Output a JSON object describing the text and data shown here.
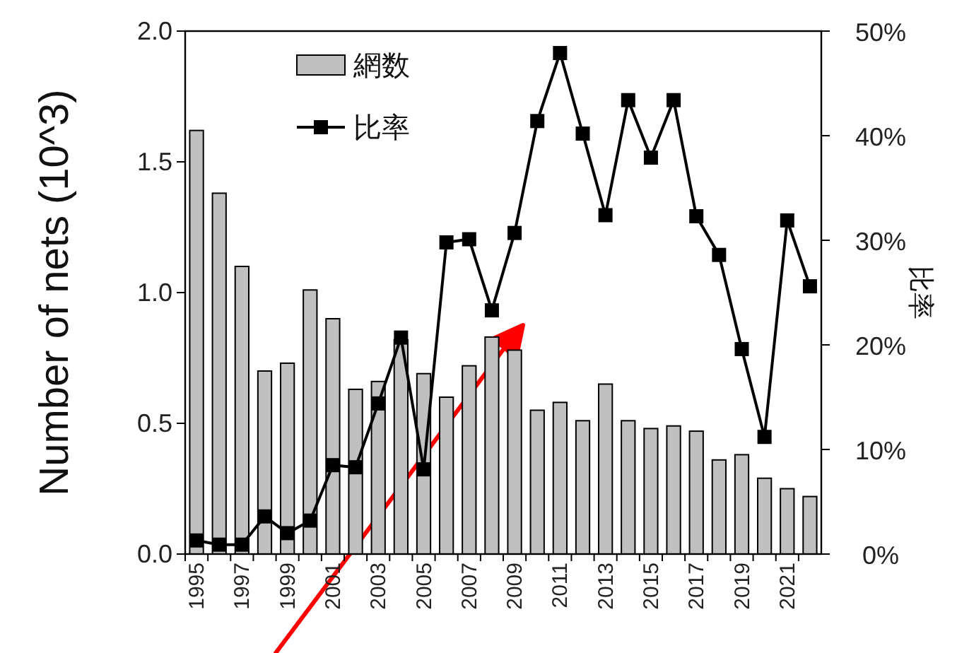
{
  "chart_data": {
    "type": "bar",
    "ylabel": "Number of nets (10^3)",
    "y2label": "比率",
    "categories": [
      "1995",
      null,
      "1997",
      null,
      "1999",
      null,
      "2001",
      null,
      "2003",
      null,
      "2005",
      null,
      "2007",
      null,
      "2009",
      null,
      "2011",
      null,
      "2013",
      null,
      "2015",
      null,
      "2017",
      null,
      "2019",
      null,
      "2021",
      null
    ],
    "series": [
      {
        "name": "網数",
        "color": "#c0c0c0",
        "values": [
          1.62,
          1.38,
          1.1,
          0.7,
          0.73,
          1.01,
          0.9,
          0.63,
          0.66,
          0.82,
          0.69,
          0.6,
          0.72,
          0.83,
          0.78,
          0.55,
          0.58,
          0.51,
          0.65,
          0.51,
          0.48,
          0.49,
          0.47,
          0.36,
          0.38,
          0.29,
          0.25,
          0.22
        ]
      },
      {
        "name": "比率",
        "type": "line",
        "axis": "y2",
        "color": "#000000",
        "marker": "square",
        "values": [
          1.3,
          0.9,
          0.9,
          3.6,
          2.0,
          3.2,
          8.5,
          8.3,
          14.4,
          20.7,
          8.1,
          29.8,
          30.1,
          23.3,
          30.7,
          41.4,
          47.9,
          40.2,
          32.4,
          43.4,
          37.9,
          43.4,
          32.3,
          28.6,
          19.6,
          11.2,
          31.9,
          25.6
        ]
      }
    ],
    "ylim": [
      0,
      2
    ],
    "yticks": [
      {
        "value": 0,
        "label": "0.0"
      },
      0.5,
      {
        "value": 1,
        "label": "1.0"
      },
      1.5,
      {
        "value": 2,
        "label": "2.0"
      }
    ],
    "y2lim": [
      0,
      50
    ],
    "y2ticks": [
      {
        "value": 0,
        "label": "0%"
      },
      {
        "value": 10,
        "label": "10%"
      },
      {
        "value": 20,
        "label": "20%"
      },
      {
        "value": 30,
        "label": "30%"
      },
      {
        "value": 40,
        "label": "40%"
      },
      {
        "value": 50,
        "label": "50%"
      }
    ],
    "legend": "top left",
    "grid": false
  }
}
